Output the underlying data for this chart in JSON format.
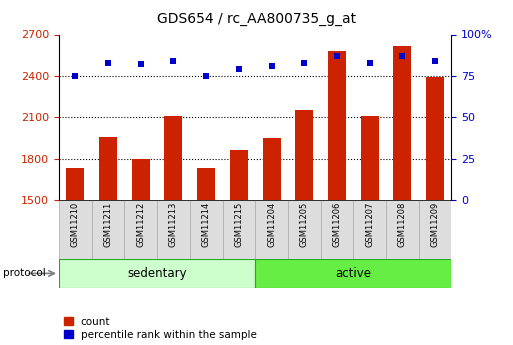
{
  "title": "GDS654 / rc_AA800735_g_at",
  "samples": [
    "GSM11210",
    "GSM11211",
    "GSM11212",
    "GSM11213",
    "GSM11214",
    "GSM11215",
    "GSM11204",
    "GSM11205",
    "GSM11206",
    "GSM11207",
    "GSM11208",
    "GSM11209"
  ],
  "counts": [
    1730,
    1960,
    1800,
    2110,
    1730,
    1860,
    1950,
    2150,
    2580,
    2110,
    2620,
    2395
  ],
  "percentile_ranks": [
    75,
    83,
    82,
    84,
    75,
    79,
    81,
    83,
    87,
    83,
    87,
    84
  ],
  "group_colors": {
    "sedentary": "#ccffcc",
    "active": "#66ee44"
  },
  "bar_color": "#cc2200",
  "dot_color": "#0000cc",
  "ylim_left": [
    1500,
    2700
  ],
  "ylim_right": [
    0,
    100
  ],
  "yticks_left": [
    1500,
    1800,
    2100,
    2400,
    2700
  ],
  "yticks_right": [
    0,
    25,
    50,
    75,
    100
  ],
  "grid_lines": [
    1800,
    2100,
    2400
  ],
  "legend_count": "count",
  "legend_pct": "percentile rank within the sample",
  "protocol_label": "protocol"
}
